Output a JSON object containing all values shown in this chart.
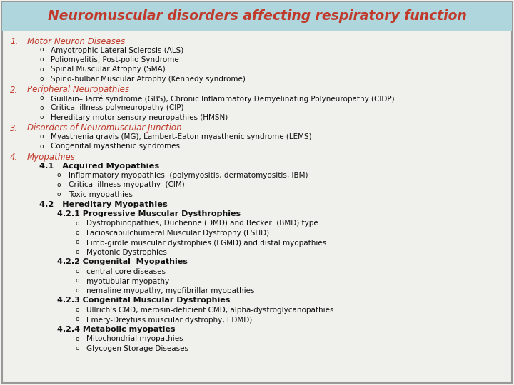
{
  "title": "Neuromuscular disorders affecting respiratory function",
  "title_color": "#C0392B",
  "title_bg_color": "#AED6DC",
  "bg_color": "#F0F0EC",
  "border_color": "#999999",
  "lines": [
    {
      "indent": 0,
      "style": "numbered",
      "num": "1.",
      "text": "Motor Neuron Diseases",
      "italic": true,
      "bold": false,
      "color": "#C0392B",
      "size": 8.5
    },
    {
      "indent": 1,
      "style": "bullet",
      "text": "Amyotrophic Lateral Sclerosis (ALS)",
      "color": "#111111",
      "size": 7.5
    },
    {
      "indent": 1,
      "style": "bullet",
      "text": "Poliomyelitis, Post-polio Syndrome",
      "color": "#111111",
      "size": 7.5
    },
    {
      "indent": 1,
      "style": "bullet",
      "text": "Spinal Muscular Atrophy (SMA)",
      "color": "#111111",
      "size": 7.5
    },
    {
      "indent": 1,
      "style": "bullet",
      "text": "Spino-bulbar Muscular Atrophy (Kennedy syndrome)",
      "color": "#111111",
      "size": 7.5
    },
    {
      "indent": 0,
      "style": "numbered",
      "num": "2.",
      "text": "Peripheral Neuropathies",
      "italic": true,
      "bold": false,
      "color": "#C0392B",
      "size": 8.5
    },
    {
      "indent": 1,
      "style": "bullet",
      "text": "Guillain–Barré syndrome (GBS), Chronic Inflammatory Demyelinating Polyneuropathy (CIDP)",
      "color": "#111111",
      "size": 7.5
    },
    {
      "indent": 1,
      "style": "bullet",
      "text": "Critical illness polyneuropathy (CIP)",
      "color": "#111111",
      "size": 7.5
    },
    {
      "indent": 1,
      "style": "bullet",
      "text": "Hereditary motor sensory neuropathies (HMSN)",
      "color": "#111111",
      "size": 7.5
    },
    {
      "indent": 0,
      "style": "numbered",
      "num": "3.",
      "text": "Disorders of Neuromuscular Junction",
      "italic": true,
      "bold": false,
      "color": "#C0392B",
      "size": 8.5
    },
    {
      "indent": 1,
      "style": "bullet",
      "text": "Myasthenia gravis (MG), Lambert-Eaton myasthenic syndrome (LEMS)",
      "color": "#111111",
      "size": 7.5
    },
    {
      "indent": 1,
      "style": "bullet",
      "text": "Congenital myasthenic syndromes",
      "color": "#111111",
      "size": 7.5
    },
    {
      "indent": 0,
      "style": "numbered",
      "num": "4.",
      "text": "Myopathies",
      "italic": true,
      "bold": false,
      "color": "#C0392B",
      "size": 8.5
    },
    {
      "indent": 1,
      "style": "subheading",
      "text": "4.1   Acquired Myopathies",
      "bold": true,
      "color": "#111111",
      "size": 8.2
    },
    {
      "indent": 2,
      "style": "bullet",
      "text": "Inflammatory myopathies  (polymyositis, dermatomyositis, IBM)",
      "color": "#111111",
      "size": 7.5
    },
    {
      "indent": 2,
      "style": "bullet",
      "text": "Critical illness myopathy  (CIM)",
      "color": "#111111",
      "size": 7.5
    },
    {
      "indent": 2,
      "style": "bullet",
      "text": "Toxic myopathies",
      "color": "#111111",
      "size": 7.5
    },
    {
      "indent": 1,
      "style": "subheading",
      "text": "4.2   Hereditary Myopathies",
      "bold": true,
      "color": "#111111",
      "size": 8.2
    },
    {
      "indent": 2,
      "style": "subheading2",
      "text": "4.2.1 Progressive Muscular Dysthrophies",
      "bold": true,
      "color": "#111111",
      "size": 8.0
    },
    {
      "indent": 3,
      "style": "bullet",
      "text": "Dystrophinopathies, Duchenne (DMD) and Becker  (BMD) type",
      "color": "#111111",
      "size": 7.5
    },
    {
      "indent": 3,
      "style": "bullet",
      "text": "Facioscapulchumeral Muscular Dystrophy (FSHD)",
      "color": "#111111",
      "size": 7.5
    },
    {
      "indent": 3,
      "style": "bullet",
      "text": "Limb-girdle muscular dystrophies (LGMD) and distal myopathies",
      "color": "#111111",
      "size": 7.5
    },
    {
      "indent": 3,
      "style": "bullet",
      "text": "Myotonic Dystrophies",
      "color": "#111111",
      "size": 7.5
    },
    {
      "indent": 2,
      "style": "subheading2",
      "text": "4.2.2 Congenital  Myopathies",
      "bold": true,
      "color": "#111111",
      "size": 8.0
    },
    {
      "indent": 3,
      "style": "bullet",
      "text": "central core diseases",
      "color": "#111111",
      "size": 7.5
    },
    {
      "indent": 3,
      "style": "bullet",
      "text": "myotubular myopathy",
      "color": "#111111",
      "size": 7.5
    },
    {
      "indent": 3,
      "style": "bullet",
      "text": "nemaline myopathy, myofibrillar myopathies",
      "color": "#111111",
      "size": 7.5
    },
    {
      "indent": 2,
      "style": "subheading2",
      "text": "4.2.3 Congenital Muscular Dystrophies",
      "bold": true,
      "color": "#111111",
      "size": 8.0
    },
    {
      "indent": 3,
      "style": "bullet",
      "text": "Ullrich's CMD, merosin-deficient CMD, alpha-dystroglycanopathies",
      "color": "#111111",
      "size": 7.5
    },
    {
      "indent": 3,
      "style": "bullet",
      "text": "Emery-Dreyfuss muscular dystrophy, EDMD)",
      "color": "#111111",
      "size": 7.5
    },
    {
      "indent": 2,
      "style": "subheading2",
      "text": "4.2.4 Metabolic myopaties",
      "bold": true,
      "color": "#111111",
      "size": 8.0
    },
    {
      "indent": 3,
      "style": "bullet",
      "text": "Mitochondrial myopathies",
      "color": "#111111",
      "size": 7.5
    },
    {
      "indent": 3,
      "style": "bullet",
      "text": "Glycogen Storage Diseases",
      "color": "#111111",
      "size": 7.5
    }
  ]
}
